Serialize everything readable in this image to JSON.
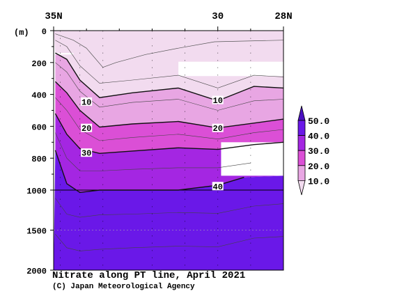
{
  "chart_data": {
    "type": "contour-section",
    "title": "Nitrate along PT line, April 2021",
    "credit": "(C) Japan Meteorological Agency",
    "x_axis": {
      "ticks": [
        {
          "label": "35N",
          "value": 35
        },
        {
          "label": "30",
          "value": 30
        },
        {
          "label": "28N",
          "value": 28
        }
      ],
      "range": [
        35,
        28
      ]
    },
    "y_axis": {
      "unit_label": "(m)",
      "ticks": [
        0,
        200,
        400,
        600,
        800,
        1000,
        1500,
        2000
      ],
      "range": [
        0,
        2000
      ],
      "scale": "upper 0-1000 stretched, lower 1000-2000 compressed"
    },
    "colorbar": {
      "labels": [
        "50.0",
        "40.0",
        "30.0",
        "20.0",
        "10.0"
      ],
      "bands": [
        {
          "range": [
            0,
            10
          ],
          "color": "#f2dbef"
        },
        {
          "range": [
            10,
            20
          ],
          "color": "#e8a6e3"
        },
        {
          "range": [
            20,
            30
          ],
          "color": "#db4fd6"
        },
        {
          "range": [
            30,
            40
          ],
          "color": "#a426e2"
        },
        {
          "range": [
            40,
            50
          ],
          "color": "#6a18e8"
        },
        {
          "range": [
            50,
            60
          ],
          "color": "#4a10c0"
        }
      ]
    },
    "contour_labels": [
      {
        "text": "10",
        "lat": 34.0,
        "depth": 445
      },
      {
        "text": "10",
        "lat": 30.0,
        "depth": 435
      },
      {
        "text": "20",
        "lat": 34.0,
        "depth": 610
      },
      {
        "text": "20",
        "lat": 30.0,
        "depth": 610
      },
      {
        "text": "30",
        "lat": 34.0,
        "depth": 765
      },
      {
        "text": "40",
        "lat": 30.0,
        "depth": 975
      }
    ],
    "isolines": [
      {
        "value": 10,
        "points": [
          [
            34.95,
            140
          ],
          [
            34.6,
            180
          ],
          [
            34.2,
            310
          ],
          [
            33.6,
            420
          ],
          [
            32.6,
            390
          ],
          [
            31.2,
            360
          ],
          [
            30.0,
            440
          ],
          [
            28.9,
            350
          ],
          [
            28.0,
            360
          ]
        ]
      },
      {
        "value": 20,
        "points": [
          [
            34.95,
            320
          ],
          [
            34.6,
            390
          ],
          [
            34.2,
            500
          ],
          [
            33.6,
            605
          ],
          [
            32.6,
            585
          ],
          [
            31.2,
            570
          ],
          [
            30.0,
            610
          ],
          [
            28.9,
            580
          ],
          [
            28.0,
            555
          ]
        ]
      },
      {
        "value": 30,
        "points": [
          [
            34.95,
            520
          ],
          [
            34.6,
            650
          ],
          [
            34.2,
            740
          ],
          [
            33.6,
            770
          ],
          [
            32.6,
            755
          ],
          [
            31.2,
            735
          ],
          [
            30.0,
            745
          ],
          [
            28.9,
            715
          ],
          [
            28.0,
            700
          ]
        ]
      },
      {
        "value": 40,
        "points": [
          [
            34.95,
            750
          ],
          [
            34.6,
            960
          ],
          [
            34.2,
            1030
          ],
          [
            33.6,
            1000
          ],
          [
            32.6,
            1000
          ],
          [
            31.2,
            1000
          ],
          [
            30.0,
            970
          ],
          [
            29.2,
            920
          ]
        ]
      }
    ],
    "masked_regions": [
      {
        "lat": [
          35.0,
          34.4
        ],
        "depth": [
          140,
          150
        ]
      },
      {
        "lat": [
          31.2,
          28.0
        ],
        "depth": [
          195,
          285
        ]
      },
      {
        "lat": [
          29.9,
          28.0
        ],
        "depth": [
          700,
          910
        ]
      }
    ],
    "station_lats": [
      34.8,
      34.2,
      33.5,
      32.0,
      31.0,
      30.0,
      29.0,
      28.0
    ],
    "grid": true
  }
}
